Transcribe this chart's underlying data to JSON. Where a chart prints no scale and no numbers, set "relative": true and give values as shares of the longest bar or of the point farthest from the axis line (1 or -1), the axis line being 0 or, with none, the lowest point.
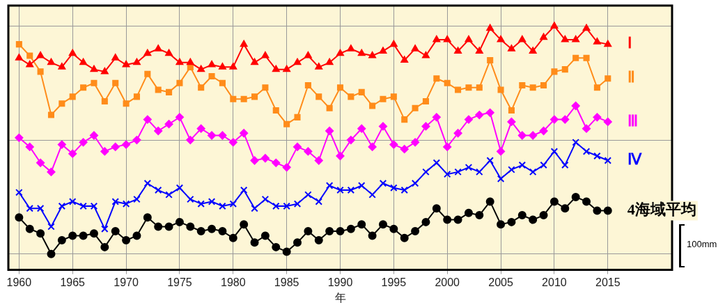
{
  "chart_data": {
    "type": "line",
    "relative": true,
    "xlabel": "年",
    "x": [
      1960,
      1961,
      1962,
      1963,
      1964,
      1965,
      1966,
      1967,
      1968,
      1969,
      1970,
      1971,
      1972,
      1973,
      1974,
      1975,
      1976,
      1977,
      1978,
      1979,
      1980,
      1981,
      1982,
      1983,
      1984,
      1985,
      1986,
      1987,
      1988,
      1989,
      1990,
      1991,
      1992,
      1993,
      1994,
      1995,
      1996,
      1997,
      1998,
      1999,
      2000,
      2001,
      2002,
      2003,
      2004,
      2005,
      2006,
      2007,
      2008,
      2009,
      2010,
      2011,
      2012,
      2013,
      2014,
      2015
    ],
    "xlim": [
      1959,
      2021
    ],
    "xticks": [
      1960,
      1965,
      1970,
      1975,
      1980,
      1985,
      1990,
      1995,
      2000,
      2005,
      2010,
      2015
    ],
    "grid": true,
    "legend": false,
    "line_style": "solid",
    "series": [
      {
        "name": "Ⅰ",
        "color": "#ff0000",
        "marker": "triangle",
        "values": [
          0.86,
          0.83,
          0.87,
          0.84,
          0.82,
          0.88,
          0.84,
          0.81,
          0.8,
          0.86,
          0.83,
          0.84,
          0.88,
          0.9,
          0.88,
          0.84,
          0.84,
          0.81,
          0.83,
          0.82,
          0.82,
          0.92,
          0.84,
          0.87,
          0.81,
          0.81,
          0.84,
          0.87,
          0.82,
          0.84,
          0.88,
          0.9,
          0.88,
          0.87,
          0.89,
          0.92,
          0.85,
          0.9,
          0.87,
          0.94,
          0.94,
          0.89,
          0.94,
          0.89,
          0.99,
          0.94,
          0.9,
          0.94,
          0.89,
          0.95,
          1,
          0.94,
          0.94,
          0.99,
          0.93,
          0.92
        ]
      },
      {
        "name": "Ⅱ",
        "color": "#ff8c1a",
        "marker": "square",
        "values": [
          0.92,
          0.87,
          0.8,
          0.61,
          0.66,
          0.69,
          0.73,
          0.75,
          0.67,
          0.75,
          0.66,
          0.69,
          0.79,
          0.72,
          0.71,
          0.75,
          0.82,
          0.73,
          0.78,
          0.75,
          0.68,
          0.68,
          0.69,
          0.73,
          0.63,
          0.57,
          0.6,
          0.74,
          0.69,
          0.64,
          0.73,
          0.69,
          0.71,
          0.65,
          0.68,
          0.69,
          0.59,
          0.64,
          0.67,
          0.77,
          0.75,
          0.72,
          0.73,
          0.73,
          0.85,
          0.72,
          0.63,
          0.74,
          0.73,
          0.74,
          0.8,
          0.81,
          0.86,
          0.86,
          0.73,
          0.77
        ]
      },
      {
        "name": "Ⅲ",
        "color": "#ff00ff",
        "marker": "diamond",
        "values": [
          0.51,
          0.47,
          0.4,
          0.36,
          0.48,
          0.44,
          0.49,
          0.52,
          0.45,
          0.47,
          0.48,
          0.5,
          0.59,
          0.54,
          0.57,
          0.6,
          0.5,
          0.55,
          0.52,
          0.52,
          0.49,
          0.53,
          0.41,
          0.42,
          0.4,
          0.38,
          0.47,
          0.45,
          0.41,
          0.54,
          0.43,
          0.5,
          0.55,
          0.47,
          0.56,
          0.48,
          0.46,
          0.49,
          0.56,
          0.6,
          0.47,
          0.53,
          0.59,
          0.61,
          0.62,
          0.45,
          0.58,
          0.52,
          0.52,
          0.54,
          0.59,
          0.59,
          0.65,
          0.55,
          0.6,
          0.58
        ]
      },
      {
        "name": "Ⅳ",
        "color": "#0000ff",
        "marker": "cross",
        "values": [
          0.27,
          0.2,
          0.2,
          0.12,
          0.21,
          0.23,
          0.21,
          0.21,
          0.11,
          0.23,
          0.22,
          0.24,
          0.31,
          0.28,
          0.26,
          0.29,
          0.24,
          0.22,
          0.23,
          0.21,
          0.22,
          0.28,
          0.2,
          0.24,
          0.21,
          0.21,
          0.22,
          0.26,
          0.23,
          0.3,
          0.28,
          0.28,
          0.3,
          0.26,
          0.31,
          0.29,
          0.28,
          0.31,
          0.36,
          0.4,
          0.35,
          0.36,
          0.38,
          0.36,
          0.41,
          0.33,
          0.37,
          0.39,
          0.36,
          0.39,
          0.45,
          0.39,
          0.49,
          0.45,
          0.43,
          0.41
        ]
      },
      {
        "name": "4海域平均",
        "color": "#000000",
        "marker": "circle",
        "values": [
          0.16,
          0.11,
          0.09,
          0,
          0.06,
          0.08,
          0.08,
          0.09,
          0.03,
          0.1,
          0.06,
          0.08,
          0.16,
          0.12,
          0.12,
          0.14,
          0.12,
          0.1,
          0.11,
          0.1,
          0.07,
          0.13,
          0.05,
          0.08,
          0.03,
          0.01,
          0.05,
          0.1,
          0.06,
          0.1,
          0.1,
          0.11,
          0.13,
          0.08,
          0.13,
          0.11,
          0.07,
          0.1,
          0.14,
          0.2,
          0.15,
          0.15,
          0.18,
          0.17,
          0.23,
          0.13,
          0.14,
          0.17,
          0.15,
          0.17,
          0.23,
          0.2,
          0.25,
          0.23,
          0.19,
          0.19
        ]
      }
    ],
    "annotations": [
      "100mm"
    ]
  }
}
